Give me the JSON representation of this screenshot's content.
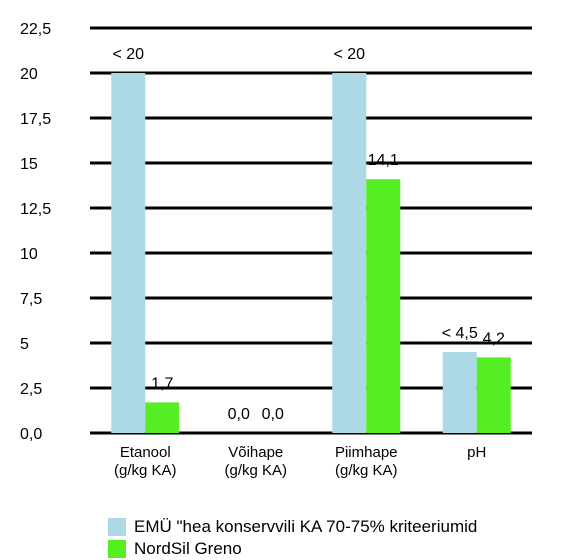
{
  "chart_data": {
    "type": "bar",
    "categories": [
      [
        "Etanool",
        "(g/kg KA)"
      ],
      [
        "Võihape",
        "(g/kg KA)"
      ],
      [
        "Piimhape",
        "(g/kg KA)"
      ],
      [
        "pH",
        ""
      ]
    ],
    "series": [
      {
        "name": "EMÜ \"hea konservvili KA 70-75% kriteeriumid",
        "color": "#add8e6",
        "values": [
          20,
          0,
          20,
          4.5
        ],
        "labels": [
          "<  20",
          "0,0",
          "<  20",
          "<  4,5"
        ]
      },
      {
        "name": " NordSil Greno",
        "color": "#55ee22",
        "values": [
          1.7,
          0,
          14.1,
          4.2
        ],
        "labels": [
          "1,7",
          "0,0",
          "14,1",
          "4,2"
        ]
      }
    ],
    "y_ticks": [
      {
        "value": 0,
        "label": "0,0"
      },
      {
        "value": 2.5,
        "label": "2,5"
      },
      {
        "value": 5,
        "label": "5"
      },
      {
        "value": 7.5,
        "label": "7,5"
      },
      {
        "value": 10,
        "label": "10"
      },
      {
        "value": 12.5,
        "label": "12,5"
      },
      {
        "value": 15,
        "label": "15"
      },
      {
        "value": 17.5,
        "label": "17,5"
      },
      {
        "value": 20,
        "label": "20"
      },
      {
        "value": 22.5,
        "label": "22,5"
      }
    ],
    "ylim": [
      0,
      22.5
    ],
    "grid": true,
    "legend_position": "bottom"
  }
}
